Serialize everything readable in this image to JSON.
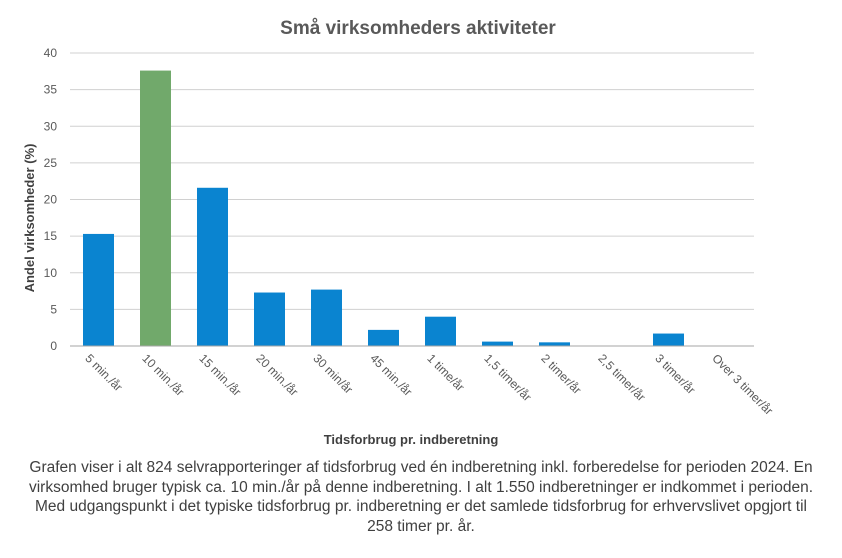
{
  "chart_data": {
    "type": "bar",
    "title": "Små virksomheders  aktiviteter",
    "xlabel": "Tidsforbrug pr. indberetning",
    "ylabel": "Andel virksomheder  (%)",
    "categories": [
      "5 min./år",
      "10 min./år",
      "15 min./år",
      "20 min./år",
      "30 min/år",
      "45 min./år",
      "1 time/år",
      "1,5 timer/år",
      "2 timer/år",
      "2,5 timer/år",
      "3 timer/år",
      "Over 3 timer/år"
    ],
    "values": [
      15.3,
      37.6,
      21.6,
      7.3,
      7.7,
      2.2,
      4.0,
      0.6,
      0.5,
      0.0,
      1.7,
      0.0
    ],
    "highlight_index": 1,
    "ylim": [
      0,
      40
    ],
    "yticks": [
      0,
      5,
      10,
      15,
      20,
      25,
      30,
      35,
      40
    ],
    "grid": true,
    "colors": {
      "bar": "#0a84d0",
      "highlight": "#71a96b",
      "grid": "#d0d0d0",
      "axis": "#a6a6a6"
    }
  },
  "caption": "Grafen viser i alt 824 selvrapporteringer af tidsforbrug  ved én indberetning inkl. forberedelse for perioden 2024. En virksomhed bruger typisk ca. 10 min./år på denne indberetning. I alt 1.550 indberetninger er indkommet i perioden. Med udgangspunkt i det typiske tidsforbrug  pr. indberetning er det samlede tidsforbrug for erhvervslivet  opgjort til 258 timer pr. år."
}
